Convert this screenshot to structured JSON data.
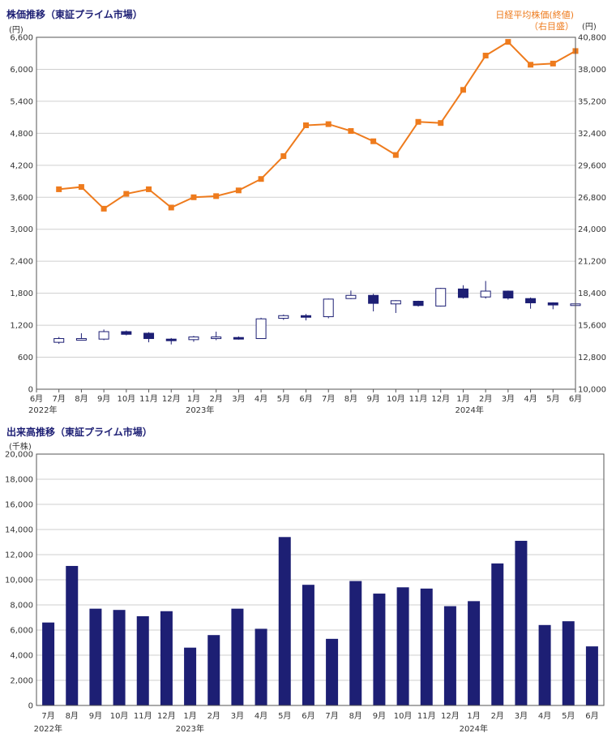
{
  "colors": {
    "title": "#1d1f74",
    "candle": "#1d1f74",
    "nikkei": "#ee7b1d",
    "grid": "#cfcfcf",
    "axis": "#555555"
  },
  "top_chart": {
    "title": "株価推移（東証プライム市場）",
    "left_unit": "(円)",
    "right_title": "日経平均株価(終値)",
    "right_sub": "（右目盛）",
    "right_unit": "(円)"
  },
  "bottom_chart": {
    "title": "出来高推移（東証プライム市場）",
    "unit": "(千株)"
  },
  "chart_data": [
    {
      "type": "candlestick",
      "title": "株価推移（東証プライム市場）",
      "ylabel": "(円)",
      "ylim": [
        0,
        6600
      ],
      "yticks": [
        "0",
        "600",
        "1,200",
        "1,800",
        "2,400",
        "3,000",
        "3,600",
        "4,200",
        "4,800",
        "5,400",
        "6,000",
        "6,600"
      ],
      "x_labels": [
        "6月",
        "7月",
        "8月",
        "9月",
        "10月",
        "11月",
        "12月",
        "1月",
        "2月",
        "3月",
        "4月",
        "5月",
        "6月",
        "7月",
        "8月",
        "9月",
        "10月",
        "11月",
        "12月",
        "1月",
        "2月",
        "3月",
        "4月",
        "5月",
        "6月"
      ],
      "year_labels": [
        {
          "label": "2022年",
          "index": 0
        },
        {
          "label": "2023年",
          "index": 7
        },
        {
          "label": "2024年",
          "index": 19
        }
      ],
      "candles": [
        {
          "month": "7月",
          "open": 880,
          "close": 950,
          "high": 980,
          "low": 850
        },
        {
          "month": "8月",
          "open": 930,
          "close": 950,
          "high": 1050,
          "low": 920
        },
        {
          "month": "9月",
          "open": 940,
          "close": 1080,
          "high": 1120,
          "low": 920
        },
        {
          "month": "10月",
          "open": 1080,
          "close": 1030,
          "high": 1100,
          "low": 1010
        },
        {
          "month": "11月",
          "open": 1050,
          "close": 950,
          "high": 1070,
          "low": 880
        },
        {
          "month": "12月",
          "open": 940,
          "close": 930,
          "high": 960,
          "low": 840
        },
        {
          "month": "1月",
          "open": 930,
          "close": 980,
          "high": 1000,
          "low": 890
        },
        {
          "month": "2月",
          "open": 960,
          "close": 980,
          "high": 1080,
          "low": 920
        },
        {
          "month": "3月",
          "open": 970,
          "close": 950,
          "high": 990,
          "low": 930
        },
        {
          "month": "4月",
          "open": 950,
          "close": 1320,
          "high": 1340,
          "low": 950
        },
        {
          "month": "5月",
          "open": 1330,
          "close": 1380,
          "high": 1400,
          "low": 1300
        },
        {
          "month": "6月",
          "open": 1380,
          "close": 1350,
          "high": 1410,
          "low": 1290
        },
        {
          "month": "7月",
          "open": 1360,
          "close": 1690,
          "high": 1700,
          "low": 1330
        },
        {
          "month": "8月",
          "open": 1700,
          "close": 1760,
          "high": 1850,
          "low": 1690
        },
        {
          "month": "9月",
          "open": 1760,
          "close": 1610,
          "high": 1790,
          "low": 1460
        },
        {
          "month": "10月",
          "open": 1600,
          "close": 1660,
          "high": 1670,
          "low": 1430
        },
        {
          "month": "11月",
          "open": 1650,
          "close": 1570,
          "high": 1660,
          "low": 1550
        },
        {
          "month": "12月",
          "open": 1560,
          "close": 1890,
          "high": 1900,
          "low": 1550
        },
        {
          "month": "1月",
          "open": 1880,
          "close": 1720,
          "high": 1950,
          "low": 1700
        },
        {
          "month": "2月",
          "open": 1730,
          "close": 1840,
          "high": 2030,
          "low": 1700
        },
        {
          "month": "3月",
          "open": 1840,
          "close": 1710,
          "high": 1850,
          "low": 1680
        },
        {
          "month": "4月",
          "open": 1700,
          "close": 1620,
          "high": 1720,
          "low": 1510
        },
        {
          "month": "5月",
          "open": 1620,
          "close": 1580,
          "high": 1630,
          "low": 1500
        },
        {
          "month": "6月",
          "open": 1570,
          "close": 1600,
          "high": 1620,
          "low": 1560
        }
      ],
      "series": [
        {
          "name": "日経平均株価(終値)",
          "axis": "right",
          "values": [
            27500,
            27700,
            25800,
            27100,
            27500,
            25900,
            26800,
            26900,
            27400,
            28400,
            30400,
            33100,
            33200,
            32600,
            31700,
            30500,
            33400,
            33300,
            36200,
            39200,
            40400,
            38400,
            38500,
            39600
          ]
        }
      ],
      "y2label": "(円)",
      "y2lim": [
        10000,
        40800
      ],
      "y2ticks": [
        "10,000",
        "12,800",
        "15,600",
        "18,400",
        "21,200",
        "24,000",
        "26,800",
        "29,600",
        "32,400",
        "35,200",
        "38,000",
        "40,800"
      ]
    },
    {
      "type": "bar",
      "title": "出来高推移（東証プライム市場）",
      "ylabel": "(千株)",
      "ylim": [
        0,
        20000
      ],
      "yticks": [
        "0",
        "2,000",
        "4,000",
        "6,000",
        "8,000",
        "10,000",
        "12,000",
        "14,000",
        "16,000",
        "18,000",
        "20,000"
      ],
      "categories": [
        "7月",
        "8月",
        "9月",
        "10月",
        "11月",
        "12月",
        "1月",
        "2月",
        "3月",
        "4月",
        "5月",
        "6月",
        "7月",
        "8月",
        "9月",
        "10月",
        "11月",
        "12月",
        "1月",
        "2月",
        "3月",
        "4月",
        "5月",
        "6月"
      ],
      "year_labels": [
        {
          "label": "2022年",
          "index": 0
        },
        {
          "label": "2023年",
          "index": 6
        },
        {
          "label": "2024年",
          "index": 18
        }
      ],
      "values": [
        6600,
        11100,
        7700,
        7600,
        7100,
        7500,
        4600,
        5600,
        7700,
        6100,
        13400,
        9600,
        5300,
        9900,
        8900,
        9400,
        9300,
        7900,
        8300,
        11300,
        13100,
        6400,
        6700,
        4700
      ]
    }
  ]
}
